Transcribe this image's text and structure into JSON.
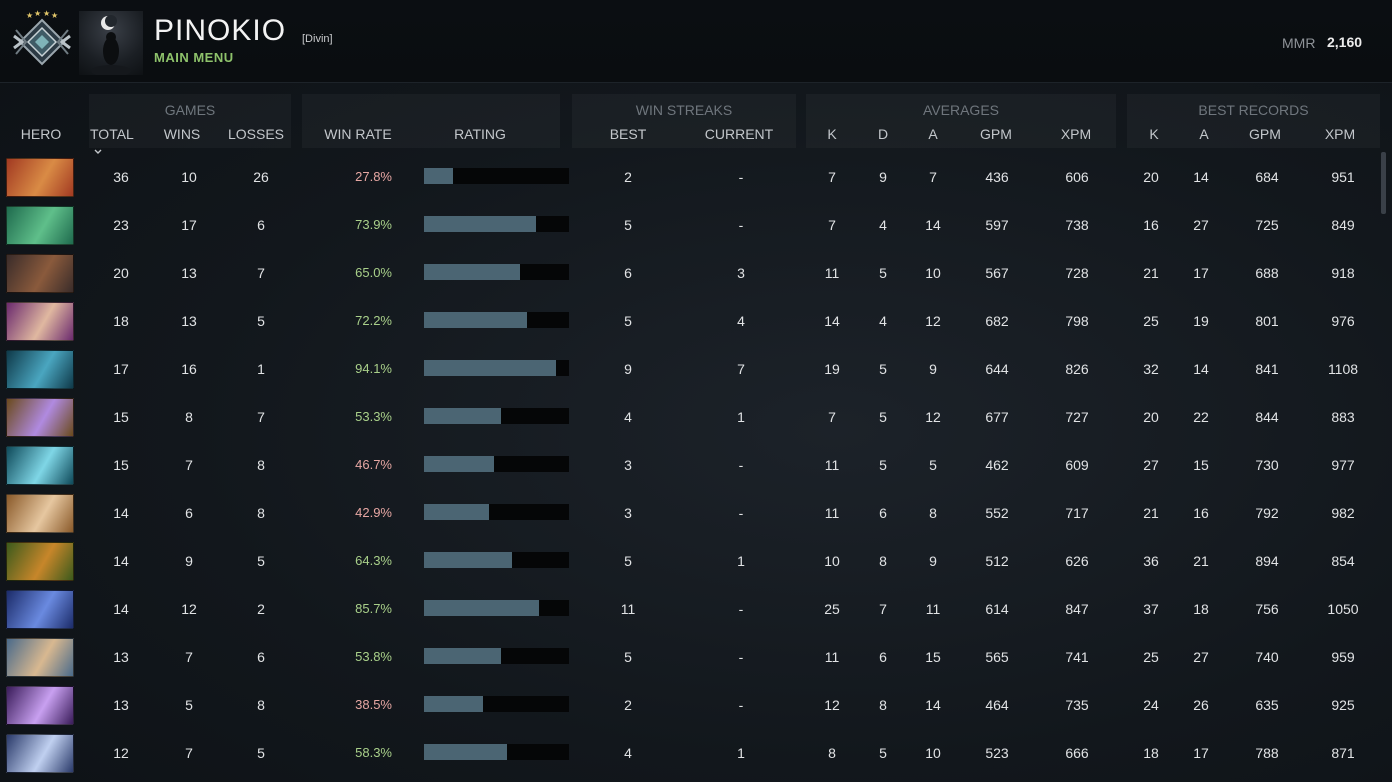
{
  "header": {
    "player_name": "PINOKIO",
    "team_tag": "[Divin]",
    "menu_link": "MAIN MENU",
    "mmr_label": "MMR",
    "mmr_value": "2,160"
  },
  "table": {
    "group_labels": {
      "games": "GAMES",
      "win_streaks": "WIN STREAKS",
      "averages": "AVERAGES",
      "best_records": "BEST RECORDS"
    },
    "columns": {
      "hero": "HERO",
      "total": "TOTAL",
      "wins": "WINS",
      "losses": "LOSSES",
      "win_rate": "WIN RATE",
      "rating": "RATING",
      "best": "BEST",
      "current": "CURRENT",
      "avg_k": "K",
      "avg_d": "D",
      "avg_a": "A",
      "avg_gpm": "GPM",
      "avg_xpm": "XPM",
      "best_k": "K",
      "best_a": "A",
      "best_gpm": "GPM",
      "best_xpm": "XPM"
    },
    "sort_indicator": "chevron-down-icon",
    "colors": {
      "winrate_high": "#a9d08a",
      "winrate_low": "#e6a7a3",
      "rating_bar": "#4b6573",
      "accent_green": "#8ec26b"
    },
    "rows": [
      {
        "hero_icon": "hero-portrait-icon",
        "hero_colors": [
          "#a23a22",
          "#d98b45"
        ],
        "total": "36",
        "wins": "10",
        "losses": "26",
        "win_rate": "27.8%",
        "rating": 0.2,
        "best_streak": "2",
        "current_streak": "-",
        "k": "7",
        "d": "9",
        "a": "7",
        "gpm": "436",
        "xpm": "606",
        "best_k": "20",
        "best_a": "14",
        "best_gpm": "684",
        "best_xpm": "951"
      },
      {
        "hero_icon": "hero-portrait-icon",
        "hero_colors": [
          "#1f6b4e",
          "#5fbf8a"
        ],
        "total": "23",
        "wins": "17",
        "losses": "6",
        "win_rate": "73.9%",
        "rating": 0.77,
        "best_streak": "5",
        "current_streak": "-",
        "k": "7",
        "d": "4",
        "a": "14",
        "gpm": "597",
        "xpm": "738",
        "best_k": "16",
        "best_a": "27",
        "best_gpm": "725",
        "best_xpm": "849"
      },
      {
        "hero_icon": "hero-portrait-icon",
        "hero_colors": [
          "#3a2c2a",
          "#8a5a3c"
        ],
        "total": "20",
        "wins": "13",
        "losses": "7",
        "win_rate": "65.0%",
        "rating": 0.66,
        "best_streak": "6",
        "current_streak": "3",
        "k": "11",
        "d": "5",
        "a": "10",
        "gpm": "567",
        "xpm": "728",
        "best_k": "21",
        "best_a": "17",
        "best_gpm": "688",
        "best_xpm": "918"
      },
      {
        "hero_icon": "hero-portrait-icon",
        "hero_colors": [
          "#6b2a6e",
          "#e0b8a0"
        ],
        "total": "18",
        "wins": "13",
        "losses": "5",
        "win_rate": "72.2%",
        "rating": 0.71,
        "best_streak": "5",
        "current_streak": "4",
        "k": "14",
        "d": "4",
        "a": "12",
        "gpm": "682",
        "xpm": "798",
        "best_k": "25",
        "best_a": "19",
        "best_gpm": "801",
        "best_xpm": "976"
      },
      {
        "hero_icon": "hero-portrait-icon",
        "hero_colors": [
          "#0f3a4a",
          "#4aa6c0"
        ],
        "total": "17",
        "wins": "16",
        "losses": "1",
        "win_rate": "94.1%",
        "rating": 0.91,
        "best_streak": "9",
        "current_streak": "7",
        "k": "19",
        "d": "5",
        "a": "9",
        "gpm": "644",
        "xpm": "826",
        "best_k": "32",
        "best_a": "14",
        "best_gpm": "841",
        "best_xpm": "1108"
      },
      {
        "hero_icon": "hero-portrait-icon",
        "hero_colors": [
          "#6a4a1c",
          "#b08ae0"
        ],
        "total": "15",
        "wins": "8",
        "losses": "7",
        "win_rate": "53.3%",
        "rating": 0.53,
        "best_streak": "4",
        "current_streak": "1",
        "k": "7",
        "d": "5",
        "a": "12",
        "gpm": "677",
        "xpm": "727",
        "best_k": "20",
        "best_a": "22",
        "best_gpm": "844",
        "best_xpm": "883"
      },
      {
        "hero_icon": "hero-portrait-icon",
        "hero_colors": [
          "#0f4a5a",
          "#7fd6e6"
        ],
        "total": "15",
        "wins": "7",
        "losses": "8",
        "win_rate": "46.7%",
        "rating": 0.48,
        "best_streak": "3",
        "current_streak": "-",
        "k": "11",
        "d": "5",
        "a": "5",
        "gpm": "462",
        "xpm": "609",
        "best_k": "27",
        "best_a": "15",
        "best_gpm": "730",
        "best_xpm": "977"
      },
      {
        "hero_icon": "hero-portrait-icon",
        "hero_colors": [
          "#8a5a2a",
          "#e6c7a0"
        ],
        "total": "14",
        "wins": "6",
        "losses": "8",
        "win_rate": "42.9%",
        "rating": 0.45,
        "best_streak": "3",
        "current_streak": "-",
        "k": "11",
        "d": "6",
        "a": "8",
        "gpm": "552",
        "xpm": "717",
        "best_k": "21",
        "best_a": "16",
        "best_gpm": "792",
        "best_xpm": "982"
      },
      {
        "hero_icon": "hero-portrait-icon",
        "hero_colors": [
          "#3c5a1c",
          "#c7862a"
        ],
        "total": "14",
        "wins": "9",
        "losses": "5",
        "win_rate": "64.3%",
        "rating": 0.61,
        "best_streak": "5",
        "current_streak": "1",
        "k": "10",
        "d": "8",
        "a": "9",
        "gpm": "512",
        "xpm": "626",
        "best_k": "36",
        "best_a": "21",
        "best_gpm": "894",
        "best_xpm": "854"
      },
      {
        "hero_icon": "hero-portrait-icon",
        "hero_colors": [
          "#1c2c6a",
          "#6a8ae0"
        ],
        "total": "14",
        "wins": "12",
        "losses": "2",
        "win_rate": "85.7%",
        "rating": 0.79,
        "best_streak": "11",
        "current_streak": "-",
        "k": "25",
        "d": "7",
        "a": "11",
        "gpm": "614",
        "xpm": "847",
        "best_k": "37",
        "best_a": "18",
        "best_gpm": "756",
        "best_xpm": "1050"
      },
      {
        "hero_icon": "hero-portrait-icon",
        "hero_colors": [
          "#4a6a8a",
          "#d8b890"
        ],
        "total": "13",
        "wins": "7",
        "losses": "6",
        "win_rate": "53.8%",
        "rating": 0.53,
        "best_streak": "5",
        "current_streak": "-",
        "k": "11",
        "d": "6",
        "a": "15",
        "gpm": "565",
        "xpm": "741",
        "best_k": "25",
        "best_a": "27",
        "best_gpm": "740",
        "best_xpm": "959"
      },
      {
        "hero_icon": "hero-portrait-icon",
        "hero_colors": [
          "#3a1c5a",
          "#c8a0f0"
        ],
        "total": "13",
        "wins": "5",
        "losses": "8",
        "win_rate": "38.5%",
        "rating": 0.41,
        "best_streak": "2",
        "current_streak": "-",
        "k": "12",
        "d": "8",
        "a": "14",
        "gpm": "464",
        "xpm": "735",
        "best_k": "24",
        "best_a": "26",
        "best_gpm": "635",
        "best_xpm": "925"
      },
      {
        "hero_icon": "hero-portrait-icon",
        "hero_colors": [
          "#2a3a6a",
          "#c0d0f0"
        ],
        "total": "12",
        "wins": "7",
        "losses": "5",
        "win_rate": "58.3%",
        "rating": 0.57,
        "best_streak": "4",
        "current_streak": "1",
        "k": "8",
        "d": "5",
        "a": "10",
        "gpm": "523",
        "xpm": "666",
        "best_k": "18",
        "best_a": "17",
        "best_gpm": "788",
        "best_xpm": "871"
      }
    ]
  }
}
